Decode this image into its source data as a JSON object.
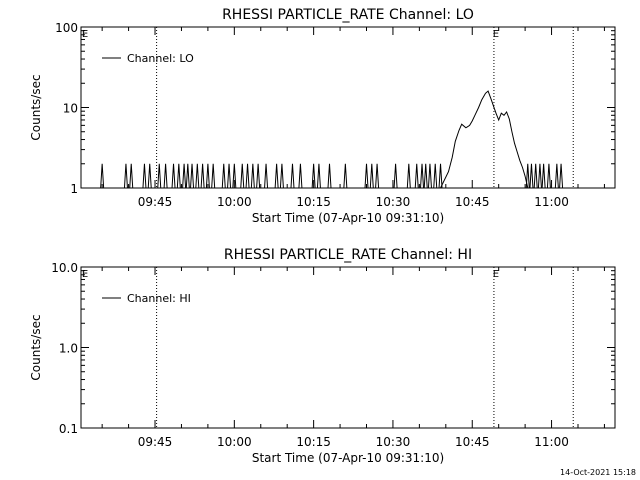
{
  "footer_timestamp": "14-Oct-2021 15:18",
  "chart_data": [
    {
      "type": "line",
      "title": "RHESSI PARTICLE_RATE Channel: LO",
      "xlabel": "Start Time (07-Apr-10 09:31:10)",
      "ylabel": "Counts/sec",
      "x_unit": "minutes since 09:31:10",
      "xlim": [
        0,
        101
      ],
      "ylim": [
        1,
        100
      ],
      "yscale": "log",
      "xticks": [
        {
          "t": 14,
          "label": "09:45"
        },
        {
          "t": 29,
          "label": "10:00"
        },
        {
          "t": 44,
          "label": "10:15"
        },
        {
          "t": 59,
          "label": "10:30"
        },
        {
          "t": 74,
          "label": "10:45"
        },
        {
          "t": 89,
          "label": "11:00"
        }
      ],
      "yticks": [
        {
          "v": 1,
          "label": "1"
        },
        {
          "v": 10,
          "label": "10"
        },
        {
          "v": 100,
          "label": "100"
        }
      ],
      "legend": {
        "entry": "Channel: LO",
        "placement": "top-left"
      },
      "markers": [
        {
          "t": 0,
          "label": "E",
          "line": false
        },
        {
          "t": 14.3,
          "label": "",
          "line": true
        },
        {
          "t": 78.1,
          "label": "E",
          "line": true
        },
        {
          "t": 93.1,
          "label": "",
          "line": true
        }
      ],
      "series": [
        {
          "name": "Channel: LO",
          "spikes": [
            4,
            8.5,
            9.5,
            12,
            13,
            14.8,
            16,
            17.5,
            18.5,
            19.5,
            20.2,
            21,
            22,
            23,
            24,
            25,
            27,
            28,
            29,
            30.5,
            31.5,
            32.5,
            33.5,
            35,
            37,
            38,
            40,
            41.5,
            44,
            45,
            47,
            50,
            54,
            55,
            56,
            59.5,
            62,
            63.5,
            64.5,
            65.2,
            66,
            67,
            68,
            84.5,
            85.2,
            86,
            86.8,
            87.5,
            88.5,
            90,
            90.8
          ],
          "profile": {
            "t": [
              68,
              69.5,
              70.2,
              70.8,
              71.5,
              72,
              72.8,
              73.5,
              74,
              74.5,
              75.2,
              75.8,
              76.5,
              77,
              77.5,
              78,
              78.5,
              79,
              79.5,
              80,
              80.5,
              81,
              81.5,
              82,
              82.5,
              83,
              83.5,
              84,
              84.5
            ],
            "counts": [
              1,
              1.6,
              2.4,
              3.8,
              5.2,
              6.2,
              5.6,
              6.0,
              6.8,
              8.0,
              10.0,
              12.5,
              15.0,
              16.0,
              13.0,
              10.5,
              8.5,
              7.0,
              8.5,
              8.0,
              8.8,
              7.2,
              5.0,
              3.6,
              2.8,
              2.2,
              1.8,
              1.4,
              1
            ]
          }
        }
      ]
    },
    {
      "type": "line",
      "title": "RHESSI PARTICLE_RATE Channel: HI",
      "xlabel": "Start Time (07-Apr-10 09:31:10)",
      "ylabel": "Counts/sec",
      "x_unit": "minutes since 09:31:10",
      "xlim": [
        0,
        101
      ],
      "ylim": [
        0.1,
        10
      ],
      "yscale": "log",
      "xticks": [
        {
          "t": 14,
          "label": "09:45"
        },
        {
          "t": 29,
          "label": "10:00"
        },
        {
          "t": 44,
          "label": "10:15"
        },
        {
          "t": 59,
          "label": "10:30"
        },
        {
          "t": 74,
          "label": "10:45"
        },
        {
          "t": 89,
          "label": "11:00"
        }
      ],
      "yticks": [
        {
          "v": 0.1,
          "label": "0.1"
        },
        {
          "v": 1,
          "label": "1.0"
        },
        {
          "v": 10,
          "label": "10.0"
        }
      ],
      "legend": {
        "entry": "Channel: HI",
        "placement": "top-left"
      },
      "markers": [
        {
          "t": 0,
          "label": "E",
          "line": false
        },
        {
          "t": 14.3,
          "label": "",
          "line": true
        },
        {
          "t": 78.1,
          "label": "E",
          "line": true
        },
        {
          "t": 93.1,
          "label": "",
          "line": true
        }
      ],
      "series": [
        {
          "name": "Channel: HI",
          "spikes": [],
          "profile": {
            "t": [],
            "counts": []
          }
        }
      ]
    }
  ]
}
